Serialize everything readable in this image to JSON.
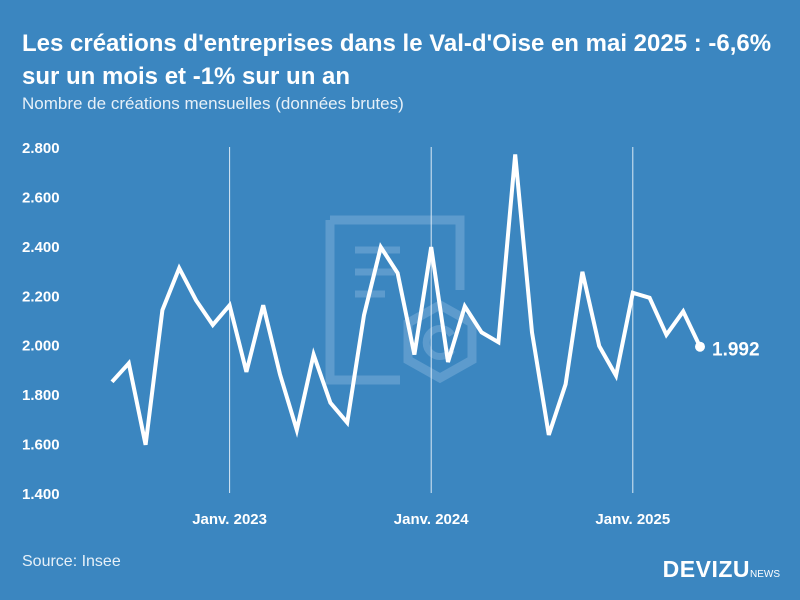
{
  "header": {
    "title": "Les créations d'entreprises dans le Val-d'Oise en mai 2025 : -6,6% sur un mois et -1% sur un an",
    "subtitle": "Nombre de créations mensuelles (données brutes)"
  },
  "footer": {
    "source": "Source: Insee",
    "brand": "DEVIZU",
    "brand_suffix": "NEWS"
  },
  "colors": {
    "background": "#3b86c0",
    "line": "#ffffff",
    "grid": "#dbe9f5",
    "watermark": "#6fa6d3"
  },
  "chart_data": {
    "type": "line",
    "title": "Les créations d'entreprises dans le Val-d'Oise en mai 2025 : -6,6% sur un mois et -1% sur un an",
    "subtitle": "Nombre de créations mensuelles (données brutes)",
    "xlabel": "",
    "ylabel": "",
    "x": [
      "2022-06",
      "2022-07",
      "2022-08",
      "2022-09",
      "2022-10",
      "2022-11",
      "2022-12",
      "2023-01",
      "2023-02",
      "2023-03",
      "2023-04",
      "2023-05",
      "2023-06",
      "2023-07",
      "2023-08",
      "2023-09",
      "2023-10",
      "2023-11",
      "2023-12",
      "2024-01",
      "2024-02",
      "2024-03",
      "2024-04",
      "2024-05",
      "2024-06",
      "2024-07",
      "2024-08",
      "2024-09",
      "2024-10",
      "2024-11",
      "2024-12",
      "2025-01",
      "2025-02",
      "2025-03",
      "2025-04",
      "2025-05"
    ],
    "series": [
      {
        "name": "",
        "values": [
          1850,
          1925,
          1595,
          2140,
          2310,
          2180,
          2080,
          2160,
          1890,
          2160,
          1880,
          1655,
          1960,
          1765,
          1685,
          2120,
          2395,
          2290,
          1960,
          2395,
          1930,
          2155,
          2050,
          2010,
          2770,
          2050,
          1635,
          1840,
          2295,
          1995,
          1875,
          2210,
          2190,
          2040,
          2135,
          1992
        ]
      }
    ],
    "ylim": [
      1400,
      2800
    ],
    "yticks": [
      1400,
      1600,
      1800,
      2000,
      2200,
      2400,
      2600,
      2800
    ],
    "ytick_labels": [
      "1.400",
      "1.600",
      "1.800",
      "2.000",
      "2.200",
      "2.400",
      "2.600",
      "2.800"
    ],
    "xticks": [
      {
        "label": "Janv. 2023",
        "x": "2023-01"
      },
      {
        "label": "Janv. 2024",
        "x": "2024-01"
      },
      {
        "label": "Janv. 2025",
        "x": "2025-01"
      }
    ],
    "grid": "vertical at January ticks",
    "legend": "none",
    "end_label": "1.992"
  }
}
